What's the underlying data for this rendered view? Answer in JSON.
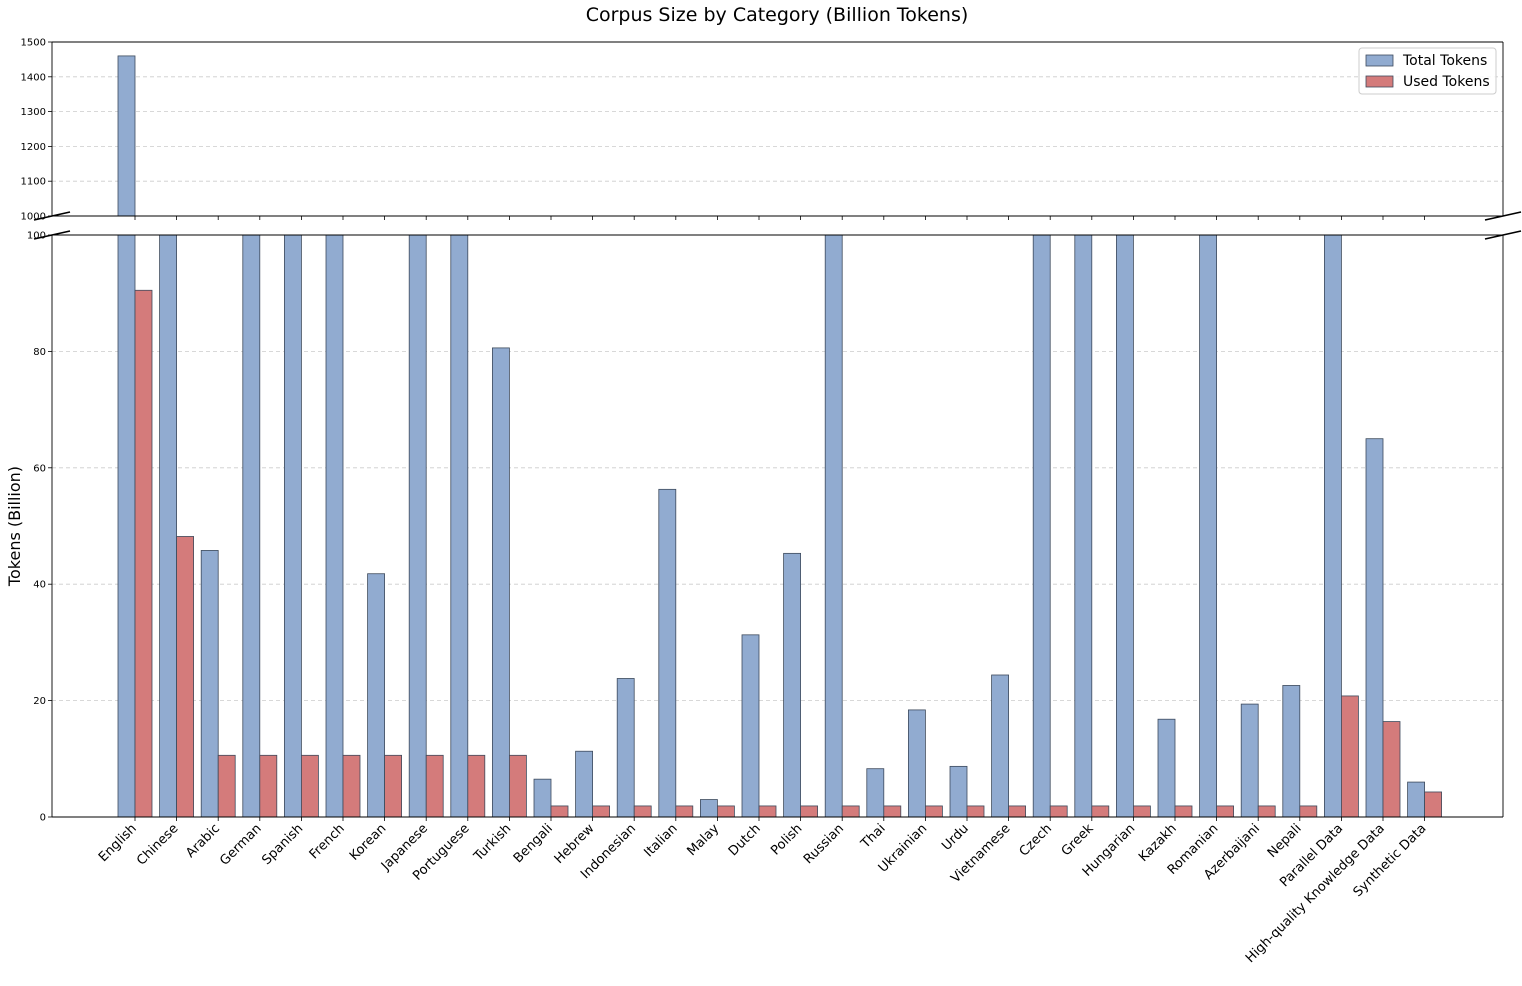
{
  "chart_data": {
    "type": "bar",
    "title": "Corpus Size by Category (Billion Tokens)",
    "xlabel": "",
    "ylabel": "Tokens (Billion)",
    "broken_axis": true,
    "upper_ylim": [
      1000,
      1500
    ],
    "lower_ylim": [
      0,
      100
    ],
    "upper_yticks": [
      1000,
      1100,
      1200,
      1300,
      1400,
      1500
    ],
    "lower_yticks": [
      0,
      20,
      40,
      60,
      80,
      100
    ],
    "grid": "horizontal dashed",
    "legend_position": "top-right",
    "categories": [
      "English",
      "Chinese",
      "Arabic",
      "German",
      "Spanish",
      "French",
      "Korean",
      "Japanese",
      "Portuguese",
      "Turkish",
      "Bengali",
      "Hebrew",
      "Indonesian",
      "Italian",
      "Malay",
      "Dutch",
      "Polish",
      "Russian",
      "Thai",
      "Ukrainian",
      "Urdu",
      "Vietnamese",
      "Czech",
      "Greek",
      "Hungarian",
      "Kazakh",
      "Romanian",
      "Azerbaijani",
      "Nepali",
      "Parallel Data",
      "High-quality Knowledge Data",
      "Synthetic Data"
    ],
    "series": [
      {
        "name": "Total Tokens",
        "color": "#91abd0",
        "values": [
          1460,
          120,
          45.8,
          120,
          120,
          120,
          41.8,
          120,
          120,
          80.6,
          6.5,
          11.3,
          23.8,
          56.3,
          3.0,
          31.3,
          45.3,
          120,
          8.3,
          18.4,
          8.7,
          24.4,
          120,
          120,
          120,
          16.8,
          120,
          19.4,
          22.6,
          120,
          65.0,
          6.0
        ]
      },
      {
        "name": "Used Tokens",
        "color": "#d47b7b",
        "values": [
          90.5,
          48.2,
          10.6,
          10.6,
          10.6,
          10.6,
          10.6,
          10.6,
          10.6,
          10.6,
          1.9,
          1.9,
          1.9,
          1.9,
          1.9,
          1.9,
          1.9,
          1.9,
          1.9,
          1.9,
          1.9,
          1.9,
          1.9,
          1.9,
          1.9,
          1.9,
          1.9,
          1.9,
          1.9,
          20.8,
          16.4,
          4.3
        ]
      }
    ]
  }
}
